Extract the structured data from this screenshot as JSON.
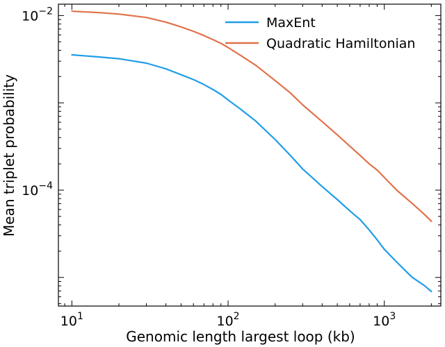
{
  "chart_data": {
    "type": "line",
    "title": "",
    "xlabel": "Genomic length largest loop (kb)",
    "ylabel": "Mean triplet probability",
    "xscale": "log",
    "yscale": "log",
    "xlim": [
      8.2,
      2300
    ],
    "ylim": [
      4.7e-06,
      0.0135
    ],
    "grid": false,
    "legend": "top-right",
    "x_ticks": [
      {
        "base": "10",
        "exp": "1",
        "value": 10
      },
      {
        "base": "10",
        "exp": "2",
        "value": 100
      },
      {
        "base": "10",
        "exp": "3",
        "value": 1000
      }
    ],
    "y_ticks": [
      {
        "base": "10",
        "exp": "−2",
        "value": 0.01
      },
      {
        "base": "10",
        "exp": "−4",
        "value": 0.0001
      }
    ],
    "series": [
      {
        "name": "MaxEnt",
        "color": "#1f9ee8",
        "points": [
          [
            10,
            0.00355
          ],
          [
            15,
            0.00335
          ],
          [
            20,
            0.0032
          ],
          [
            30,
            0.00285
          ],
          [
            40,
            0.00245
          ],
          [
            50,
            0.0021
          ],
          [
            60,
            0.00185
          ],
          [
            70,
            0.00162
          ],
          [
            80,
            0.00142
          ],
          [
            90,
            0.00125
          ],
          [
            100,
            0.00108
          ],
          [
            120,
            0.00085
          ],
          [
            150,
            0.00062
          ],
          [
            200,
            0.00038
          ],
          [
            250,
            0.00025
          ],
          [
            300,
            0.000175
          ],
          [
            400,
            0.00011
          ],
          [
            500,
            7.8e-05
          ],
          [
            600,
            5.8e-05
          ],
          [
            700,
            4.6e-05
          ],
          [
            800,
            3.5e-05
          ],
          [
            900,
            2.7e-05
          ],
          [
            1000,
            2.1e-05
          ],
          [
            1200,
            1.5e-05
          ],
          [
            1500,
            1.01e-05
          ],
          [
            1800,
            8.1e-06
          ],
          [
            2000,
            6.9e-06
          ]
        ]
      },
      {
        "name": "Quadratic Hamiltonian",
        "color": "#e0724a",
        "points": [
          [
            10,
            0.0112
          ],
          [
            15,
            0.0108
          ],
          [
            20,
            0.0104
          ],
          [
            30,
            0.0095
          ],
          [
            40,
            0.0084
          ],
          [
            50,
            0.0074
          ],
          [
            60,
            0.0066
          ],
          [
            70,
            0.0059
          ],
          [
            80,
            0.0053
          ],
          [
            90,
            0.0048
          ],
          [
            100,
            0.0043
          ],
          [
            120,
            0.0035
          ],
          [
            150,
            0.0027
          ],
          [
            200,
            0.0018
          ],
          [
            250,
            0.0013
          ],
          [
            300,
            0.00095
          ],
          [
            400,
            0.00061
          ],
          [
            500,
            0.00043
          ],
          [
            600,
            0.00032
          ],
          [
            700,
            0.00025
          ],
          [
            800,
            0.0002
          ],
          [
            900,
            0.00017
          ],
          [
            1000,
            0.00014
          ],
          [
            1200,
            0.0001
          ],
          [
            1500,
            7.1e-05
          ],
          [
            1800,
            5.3e-05
          ],
          [
            2000,
            4.4e-05
          ]
        ]
      }
    ]
  }
}
